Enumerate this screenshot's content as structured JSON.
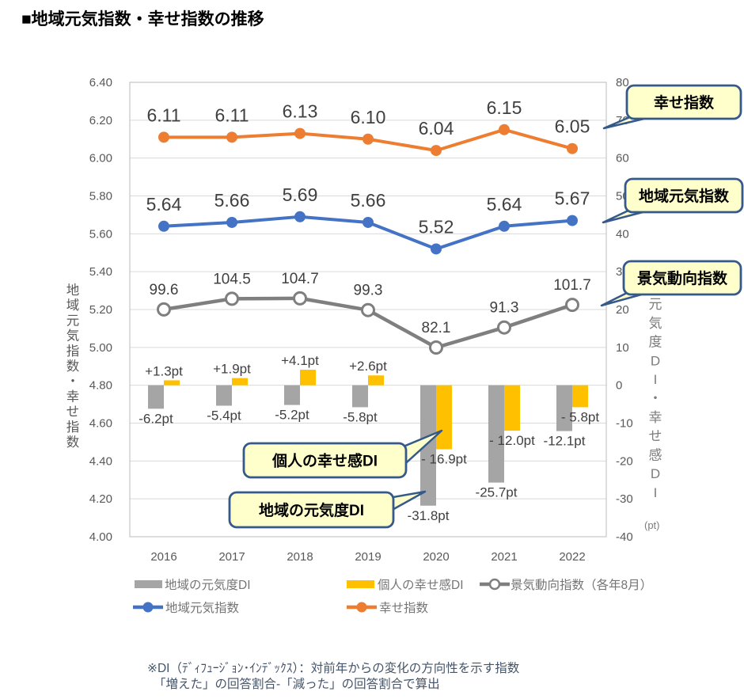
{
  "title": "■地域元気指数・幸せ指数の推移",
  "chart_data": {
    "type": "combo",
    "categories": [
      "2016",
      "2017",
      "2018",
      "2019",
      "2020",
      "2021",
      "2022"
    ],
    "series": [
      {
        "id": "chiiki-genkido-di",
        "name": "地域の元気度DI",
        "type": "bar",
        "axis": "right",
        "color": "#A5A5A5",
        "values": [
          -6.2,
          -5.4,
          -5.2,
          -5.8,
          -31.8,
          -25.7,
          -12.1
        ],
        "labels": [
          "-6.2pt",
          "-5.4pt",
          "-5.2pt",
          "-5.8pt",
          "-31.8pt",
          "-25.7pt",
          "-12.1pt"
        ]
      },
      {
        "id": "kojin-shiawase-di",
        "name": "個人の幸せ感DI",
        "type": "bar",
        "axis": "right",
        "color": "#FFC000",
        "values": [
          1.3,
          1.9,
          4.1,
          2.6,
          -16.9,
          -12.0,
          -5.8
        ],
        "labels": [
          "+1.3pt",
          "+1.9pt",
          "+4.1pt",
          "+2.6pt",
          "- 16.9pt",
          "- 12.0pt",
          "- 5.8pt"
        ]
      },
      {
        "id": "keiki-doko-shisu",
        "name": "景気動向指数（各年8月）",
        "type": "line",
        "axis": "hidden",
        "color": "#7F7F7F",
        "marker": "open",
        "values": [
          99.6,
          104.5,
          104.7,
          99.3,
          82.1,
          91.3,
          101.7
        ],
        "labels": [
          "99.6",
          "104.5",
          "104.7",
          "99.3",
          "82.1",
          "91.3",
          "101.7"
        ]
      },
      {
        "id": "chiiki-genki-shisu",
        "name": "地域元気指数",
        "type": "line",
        "axis": "left",
        "color": "#4472C4",
        "marker": "dot",
        "values": [
          5.64,
          5.66,
          5.69,
          5.66,
          5.52,
          5.64,
          5.67
        ],
        "labels": [
          "5.64",
          "5.66",
          "5.69",
          "5.66",
          "5.52",
          "5.64",
          "5.67"
        ]
      },
      {
        "id": "shiawase-shisu",
        "name": "幸せ指数",
        "type": "line",
        "axis": "left",
        "color": "#ED7D31",
        "marker": "dot",
        "values": [
          6.11,
          6.11,
          6.13,
          6.1,
          6.04,
          6.15,
          6.05
        ],
        "labels": [
          "6.11",
          "6.11",
          "6.13",
          "6.10",
          "6.04",
          "6.15",
          "6.05"
        ]
      }
    ],
    "axes": {
      "left": {
        "title": "地域元気指数・幸せ指数",
        "min": 4.0,
        "max": 6.4,
        "step": 0.2,
        "ticks": [
          "6.40",
          "6.20",
          "6.00",
          "5.80",
          "5.60",
          "5.40",
          "5.20",
          "5.00",
          "4.80",
          "4.60",
          "4.40",
          "4.20",
          "4.00"
        ]
      },
      "right": {
        "title": "元気度DI・幸せ感DI",
        "unit": "(pt)",
        "min": -40,
        "max": 80,
        "step": 10,
        "ticks": [
          "80",
          "70",
          "60",
          "50",
          "40",
          "30",
          "20",
          "10",
          "0",
          "-10",
          "-20",
          "-30",
          "-40"
        ]
      },
      "hidden": {
        "min": -4.8,
        "max": 203.9
      },
      "x": {
        "labels": [
          "2016",
          "2017",
          "2018",
          "2019",
          "2020",
          "2021",
          "2022"
        ]
      }
    },
    "gridlines": true,
    "legend_position": "bottom",
    "legend": [
      {
        "id": "chiiki-genkido-di",
        "label": "地域の元気度DI",
        "type": "bar",
        "color": "#A5A5A5"
      },
      {
        "id": "kojin-shiawase-di",
        "label": "個人の幸せ感DI",
        "type": "bar",
        "color": "#FFC000"
      },
      {
        "id": "keiki-doko-shisu",
        "label": "景気動向指数（各年8月）",
        "type": "line-open",
        "color": "#7F7F7F"
      },
      {
        "id": "chiiki-genki-shisu",
        "label": "地域元気指数",
        "type": "line-dot",
        "color": "#4472C4"
      },
      {
        "id": "shiawase-shisu",
        "label": "幸せ指数",
        "type": "line-dot",
        "color": "#ED7D31"
      }
    ]
  },
  "callouts": [
    {
      "id": "shiawase-shisu",
      "label": "幸せ指数"
    },
    {
      "id": "chiiki-genki-shisu",
      "label": "地域元気指数"
    },
    {
      "id": "keiki-doko-shisu",
      "label": "景気動向指数"
    },
    {
      "id": "kojin-shiawase-di",
      "label": "個人の幸せ感DI"
    },
    {
      "id": "chiiki-genkido-di",
      "label": "地域の元気度DI"
    }
  ],
  "callout_style": {
    "fill": "#FFFFCC",
    "border": "#35598B"
  },
  "colors": {
    "grid": "#D9D9D9",
    "plot_border": "#C6C6C6",
    "axis_text": "#595959",
    "data_label": "#404040",
    "legend_text": "#757575",
    "footnote": "#44546A"
  },
  "footnote": {
    "line1": "※DI（ﾃﾞｨﾌｭｰｼﾞｮﾝ･ｲﾝﾃﾞｯｸｽ）：対前年からの変化の方向性を示す指数",
    "line2": "「増えた」の回答割合-「減った」の回答割合で算出"
  }
}
